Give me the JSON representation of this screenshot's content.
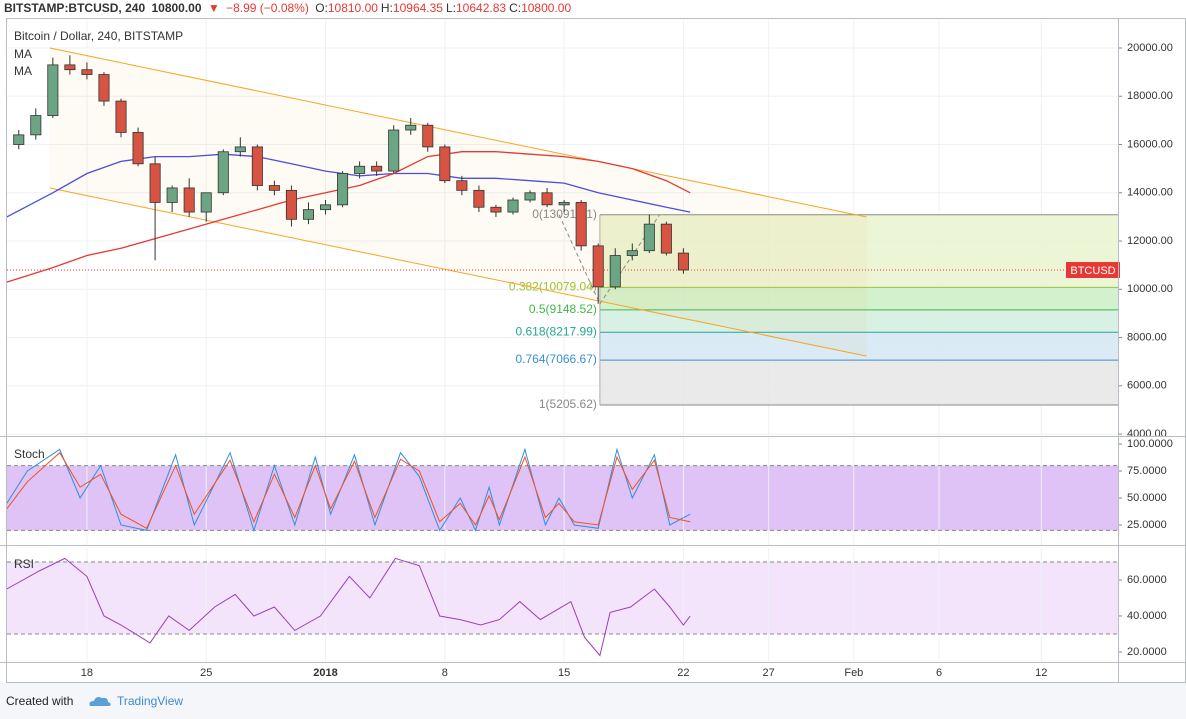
{
  "header": {
    "symbol": "BITSTAMP:BTCUSD, 240",
    "last": "10800.00",
    "arrow": "▼",
    "change": "−8.99 (−0.08%)",
    "ohlc": [
      {
        "label": "O:",
        "value": "10810.00"
      },
      {
        "label": "H:",
        "value": "10964.35"
      },
      {
        "label": "L:",
        "value": "10642.83"
      },
      {
        "label": "C:",
        "value": "10800.00"
      }
    ]
  },
  "footer": {
    "created": "Created with",
    "brand": "TradingView"
  },
  "chart_data": [
    {
      "type": "candlestick",
      "title": "Bitcoin / Dollar, 240, BITSTAMP",
      "xlim": [
        -4.69,
        60.5
      ],
      "ylim": [
        3920,
        21160
      ],
      "yticks": [
        {
          "value": 20000,
          "label": "20000.00"
        },
        {
          "value": 18000,
          "label": "18000.00"
        },
        {
          "value": 16000,
          "label": "16000.00"
        },
        {
          "value": 14000,
          "label": "14000.00"
        },
        {
          "value": 12000,
          "label": "12000.00"
        },
        {
          "value": 10000,
          "label": "10000.00"
        },
        {
          "value": 8000,
          "label": "8000.00"
        },
        {
          "value": 6000,
          "label": "6000.00"
        },
        {
          "value": 4000,
          "label": "4000.00"
        }
      ],
      "grid": true,
      "up_color": "#6ba583",
      "down_color": "#d75442",
      "x": [
        -4,
        -3,
        -2,
        -1,
        0,
        1,
        2,
        3,
        4,
        5,
        6,
        7,
        8,
        9,
        10,
        11,
        12,
        13,
        14,
        15,
        16,
        17,
        18,
        19,
        20,
        21,
        22,
        23,
        24,
        25,
        26,
        27,
        28,
        29,
        30,
        31,
        32,
        33,
        34,
        35
      ],
      "open": [
        16000,
        16400,
        17200,
        19300,
        19100,
        18900,
        17800,
        16500,
        15200,
        13600,
        14200,
        13200,
        14000,
        15700,
        15900,
        14300,
        14100,
        12900,
        13300,
        13500,
        14800,
        15100,
        14900,
        16600,
        16800,
        15900,
        14500,
        14100,
        13400,
        13200,
        13700,
        14000,
        13500,
        13600,
        11800,
        10100,
        11400,
        11600,
        12700,
        11500
      ],
      "high": [
        16600,
        17500,
        19600,
        19700,
        19400,
        19000,
        17900,
        16700,
        15500,
        14300,
        14600,
        14000,
        15800,
        16300,
        16000,
        14500,
        14300,
        13600,
        13700,
        14900,
        15300,
        15300,
        16800,
        17100,
        16900,
        16000,
        14700,
        14300,
        13500,
        13800,
        14100,
        14200,
        13700,
        13700,
        11900,
        11700,
        11900,
        13091,
        12800,
        11700
      ],
      "low": [
        15800,
        16200,
        17100,
        18900,
        18700,
        17600,
        16300,
        15100,
        11200,
        13200,
        13000,
        12800,
        13900,
        15500,
        14100,
        13900,
        12600,
        12700,
        13100,
        13400,
        14600,
        14700,
        14800,
        16400,
        15700,
        14400,
        13900,
        13200,
        13000,
        13100,
        13600,
        13400,
        13200,
        11600,
        9400,
        10000,
        11200,
        11500,
        11400,
        10642.83
      ],
      "close": [
        16400,
        17200,
        19300,
        19100,
        18900,
        17800,
        16500,
        15200,
        13600,
        14200,
        13200,
        14000,
        15700,
        15900,
        14300,
        14100,
        12900,
        13300,
        13500,
        14800,
        15100,
        14900,
        16600,
        16800,
        15900,
        14500,
        14100,
        13400,
        13200,
        13700,
        14000,
        13500,
        13600,
        11800,
        10100,
        11400,
        11600,
        12700,
        11500,
        10800
      ],
      "series": [
        {
          "name": "MA",
          "color": "#4a4fd8",
          "x": [
            -4.7,
            -2,
            0,
            2,
            4,
            6,
            8,
            10,
            12,
            14,
            16,
            18,
            20,
            22,
            24,
            26,
            28,
            30,
            32,
            34,
            35.4
          ],
          "values": [
            13000,
            14000,
            14800,
            15300,
            15500,
            15500,
            15600,
            15500,
            15200,
            14900,
            14700,
            14800,
            14800,
            14600,
            14600,
            14500,
            14400,
            14000,
            13700,
            13400,
            13200
          ]
        },
        {
          "name": "MA",
          "color": "#e53935",
          "x": [
            -4.7,
            -2,
            0,
            2,
            4,
            6,
            8,
            10,
            12,
            14,
            16,
            18,
            20,
            22,
            24,
            26,
            28,
            30,
            32,
            34,
            35.4
          ],
          "values": [
            10300,
            10900,
            11400,
            11700,
            12100,
            12500,
            12900,
            13300,
            13700,
            14000,
            14300,
            14800,
            15500,
            15700,
            15700,
            15600,
            15500,
            15300,
            15000,
            14500,
            14000
          ]
        }
      ],
      "trendlines": [
        {
          "color": "#f5a623",
          "x": [
            -2.17,
            45.75
          ],
          "values": [
            20000,
            12995
          ]
        },
        {
          "color": "#f5a623",
          "x": [
            -2.17,
            45.75
          ],
          "values": [
            14197,
            7233
          ]
        }
      ],
      "fib": {
        "x_start": 30.1,
        "trend": {
          "x": [
            27.7,
            30.1,
            33.6
          ],
          "values": [
            13091.41,
            9400,
            13091.41
          ]
        },
        "levels": [
          {
            "value": 13091.41,
            "label": "0(13091.41)",
            "color": "#888888",
            "fill": "#e9f3cf"
          },
          {
            "value": 10079.04,
            "label": "0.382(10079.04)",
            "color": "#9bc53d",
            "fill": "#cdeec5"
          },
          {
            "value": 9148.52,
            "label": "0.5(9148.52)",
            "color": "#43b649",
            "fill": "#d2eedf"
          },
          {
            "value": 8217.99,
            "label": "0.618(8217.99)",
            "color": "#26a69a",
            "fill": "#d3e7f3"
          },
          {
            "value": 7066.67,
            "label": "0.764(7066.67)",
            "color": "#3d8fd1",
            "fill": "#e6e6e6"
          },
          {
            "value": 5205.62,
            "label": "1(5205.62)",
            "color": "#888888"
          }
        ]
      },
      "last_price": {
        "value": 10800,
        "label": "BTCUSD",
        "color": "#e53935"
      }
    },
    {
      "type": "line",
      "title": "Stoch",
      "xlim": [
        -4.69,
        60.5
      ],
      "ylim": [
        6.5,
        105.6
      ],
      "yticks": [
        {
          "value": 100,
          "label": "100.0000"
        },
        {
          "value": 75,
          "label": "75.0000"
        },
        {
          "value": 50,
          "label": "50.0000"
        },
        {
          "value": 25,
          "label": "25.0000"
        }
      ],
      "bands": [
        20,
        80
      ],
      "band_fill": "#dfc3f7",
      "series": [
        {
          "color": "#2f8fe0",
          "x": [
            -4.7,
            -3.5,
            -1.6,
            -0.4,
            0.8,
            2,
            3.5,
            5.2,
            6.3,
            8.4,
            9.8,
            11,
            12.2,
            13.4,
            14.3,
            15.7,
            16.9,
            18.4,
            19.5,
            20.7,
            21.9,
            22.8,
            23.6,
            24.2,
            25.7,
            26.9,
            27.7,
            28.6,
            30,
            31.1,
            32,
            33.3,
            34.2,
            35.4
          ],
          "values": [
            45,
            75,
            95,
            50,
            80,
            25,
            20,
            90,
            25,
            92,
            20,
            80,
            25,
            88,
            35,
            90,
            25,
            92,
            70,
            20,
            50,
            20,
            60,
            25,
            95,
            25,
            50,
            25,
            22,
            95,
            50,
            90,
            25,
            35
          ]
        },
        {
          "color": "#f4511e",
          "x": [
            -4.7,
            -3.5,
            -1.6,
            -0.4,
            0.8,
            2,
            3.5,
            5.2,
            6.3,
            8.4,
            9.8,
            11,
            12.2,
            13.4,
            14.3,
            15.7,
            16.9,
            18.4,
            19.5,
            20.7,
            21.9,
            22.8,
            23.6,
            24.2,
            25.7,
            26.9,
            27.7,
            28.6,
            30,
            31.1,
            32,
            33.3,
            34.2,
            35.4
          ],
          "values": [
            40,
            65,
            92,
            60,
            72,
            35,
            22,
            80,
            35,
            85,
            28,
            72,
            32,
            80,
            40,
            84,
            32,
            86,
            75,
            28,
            45,
            25,
            52,
            30,
            88,
            32,
            45,
            28,
            25,
            88,
            58,
            85,
            32,
            28
          ]
        }
      ]
    },
    {
      "type": "line",
      "title": "RSI",
      "xlim": [
        -4.69,
        60.5
      ],
      "ylim": [
        14.4,
        77.8
      ],
      "yticks": [
        {
          "value": 60,
          "label": "60.0000"
        },
        {
          "value": 40,
          "label": "40.0000"
        },
        {
          "value": 20,
          "label": "20.0000"
        }
      ],
      "xticks": [
        {
          "value": 0,
          "label": "18"
        },
        {
          "value": 7,
          "label": "25"
        },
        {
          "value": 14,
          "label": "2018"
        },
        {
          "value": 21,
          "label": "8"
        },
        {
          "value": 28,
          "label": "15"
        },
        {
          "value": 35,
          "label": "22"
        },
        {
          "value": 40,
          "label": "27"
        },
        {
          "value": 45,
          "label": "Feb"
        },
        {
          "value": 50,
          "label": "6"
        },
        {
          "value": 56,
          "label": "12"
        }
      ],
      "bands": [
        30,
        70
      ],
      "band_fill": "#f3e4fb",
      "series": [
        {
          "color": "#9c3fb5",
          "x": [
            -4.7,
            -2.8,
            -1.3,
            0,
            1,
            2,
            3.7,
            4.8,
            6,
            7.5,
            8.7,
            9.8,
            11,
            12.2,
            13.7,
            15.4,
            16.6,
            18.1,
            19.5,
            20.7,
            21.9,
            23.1,
            24.2,
            25.4,
            26.6,
            28.4,
            29.2,
            30.1,
            30.7,
            31.9,
            33.3,
            34.2,
            35,
            35.4
          ],
          "values": [
            55,
            65,
            72,
            62,
            40,
            35,
            25,
            40,
            32,
            45,
            52,
            40,
            45,
            32,
            40,
            62,
            50,
            72,
            68,
            40,
            38,
            35,
            38,
            48,
            38,
            48,
            28,
            18,
            42,
            45,
            55,
            45,
            35,
            40
          ]
        }
      ]
    }
  ]
}
